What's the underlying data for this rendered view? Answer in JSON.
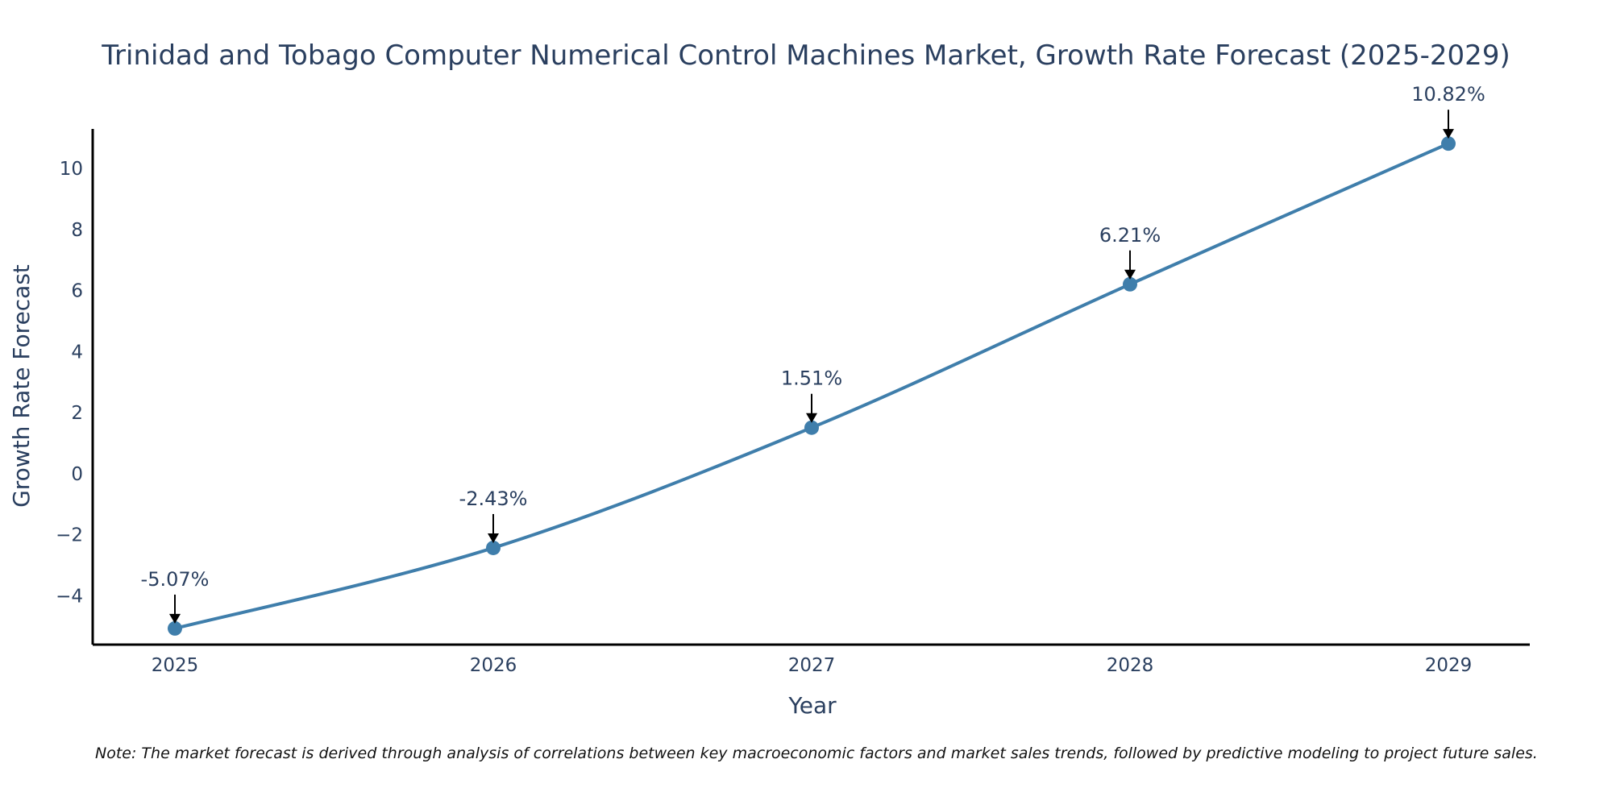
{
  "chart_data": {
    "type": "line",
    "title": "Trinidad and Tobago Computer Numerical Control Machines Market, Growth Rate Forecast (2025-2029)",
    "xlabel": "Year",
    "ylabel": "Growth Rate Forecast",
    "x": [
      "2025",
      "2026",
      "2027",
      "2028",
      "2029"
    ],
    "series": [
      {
        "name": "Growth Rate Forecast",
        "values": [
          -5.07,
          -2.43,
          1.51,
          6.21,
          10.82
        ],
        "labels": [
          "-5.07%",
          "-2.43%",
          "1.51%",
          "6.21%",
          "10.82%"
        ]
      }
    ],
    "yticks": [
      -4,
      -2,
      0,
      2,
      4,
      6,
      8,
      10
    ],
    "ytick_labels": [
      "−4",
      "−2",
      "0",
      "2",
      "4",
      "6",
      "8",
      "10"
    ],
    "ylim": [
      -5.6,
      11.3
    ],
    "grid": false,
    "line_color": "#3f7eab",
    "marker_color": "#3f7eab",
    "note": "Note: The market forecast is derived through analysis of correlations between key macroeconomic factors and market sales trends, followed by predictive modeling to project future sales."
  }
}
